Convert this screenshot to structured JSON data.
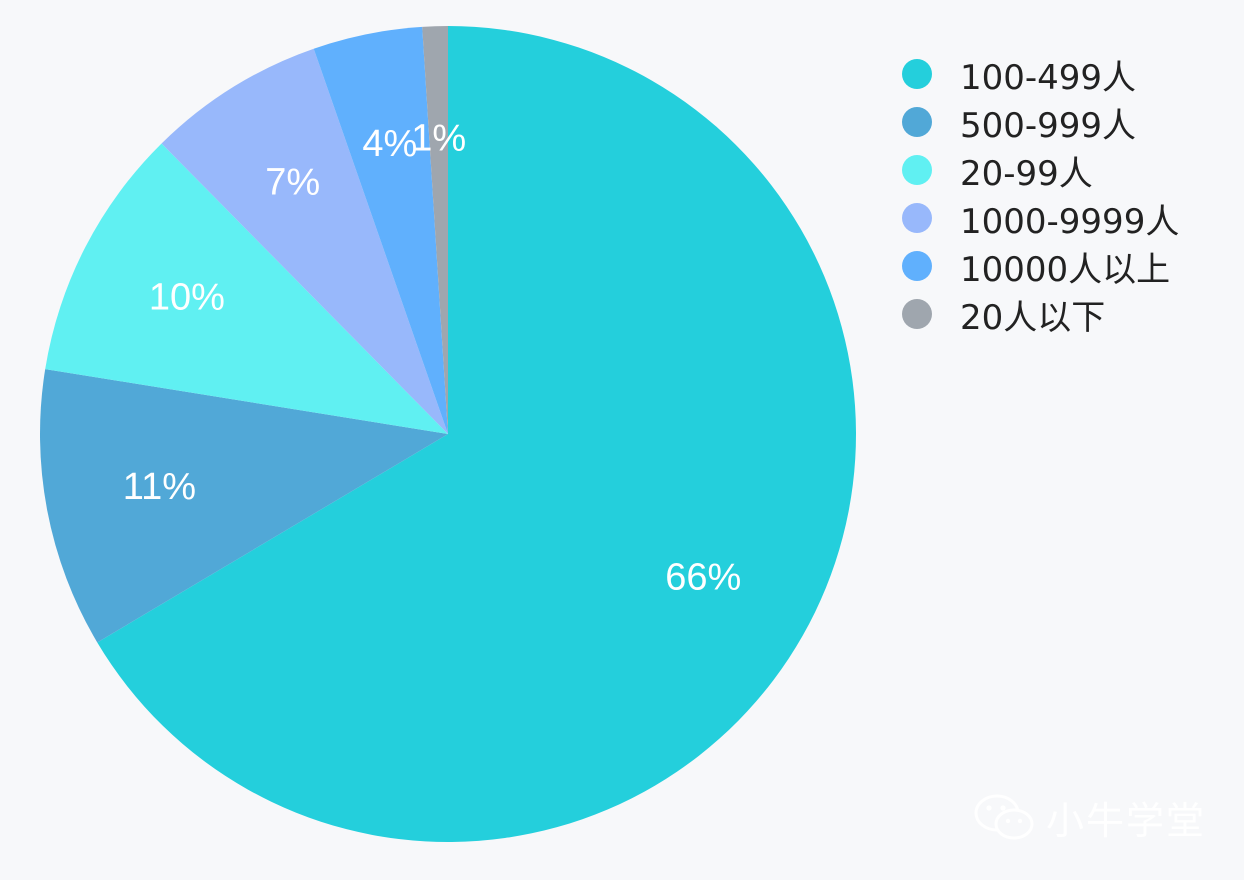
{
  "chart_data": {
    "type": "pie",
    "slices": [
      {
        "label": "100-499人",
        "value": 66,
        "display": "66%",
        "color": "#24cfdc"
      },
      {
        "label": "500-999人",
        "value": 11,
        "display": "11%",
        "color": "#51a8d7"
      },
      {
        "label": "20-99人",
        "value": 10,
        "display": "10%",
        "color": "#60f0f2"
      },
      {
        "label": "1000-9999人",
        "value": 7,
        "display": "7%",
        "color": "#98b8fb"
      },
      {
        "label": "10000人以上",
        "value": 4.3,
        "display": "4%",
        "color": "#60b0fd"
      },
      {
        "label": "20人以下",
        "value": 1,
        "display": "1%",
        "color": "#9fa6ae"
      }
    ],
    "legend_position": "top-right",
    "label_color": "#ffffff",
    "background": "#f7f8fa"
  },
  "watermark": {
    "text": "小牛学堂",
    "icon": "wechat-icon"
  }
}
